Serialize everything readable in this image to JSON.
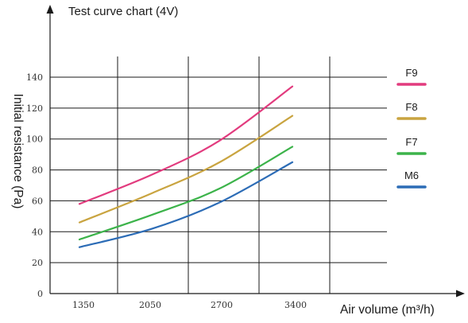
{
  "chart_data": {
    "type": "line",
    "title": "Test curve chart (4V)",
    "xlabel": "Air volume (m³/h)",
    "ylabel": "Initial resistance (Pa)",
    "x_ticks": [
      "1350",
      "2050",
      "2700",
      "3400"
    ],
    "y_ticks": [
      "0",
      "20",
      "40",
      "60",
      "80",
      "100",
      "120",
      "140"
    ],
    "ylim": [
      0,
      140
    ],
    "grid": true,
    "legend_position": "right",
    "series": [
      {
        "name": "F9",
        "color": "#e23b7e",
        "x": [
          1350,
          2050,
          2700,
          3400
        ],
        "values": [
          58,
          77,
          99,
          134
        ]
      },
      {
        "name": "F8",
        "color": "#c9a440",
        "x": [
          1350,
          2050,
          2700,
          3400
        ],
        "values": [
          46,
          65,
          85,
          115
        ]
      },
      {
        "name": "F7",
        "color": "#3cb34a",
        "x": [
          1350,
          2050,
          2700,
          3400
        ],
        "values": [
          35,
          51,
          68,
          95
        ]
      },
      {
        "name": "M6",
        "color": "#2c6cb6",
        "x": [
          1350,
          2050,
          2700,
          3400
        ],
        "values": [
          30,
          42,
          59,
          85
        ]
      }
    ]
  }
}
